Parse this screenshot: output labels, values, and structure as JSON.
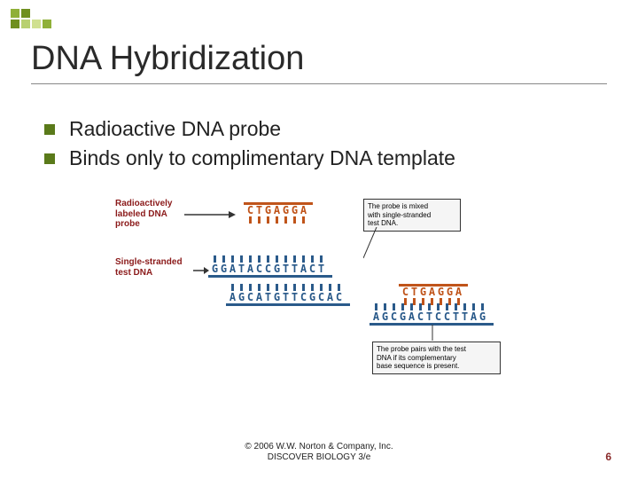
{
  "title": "DNA Hybridization",
  "bullets": [
    "Radioactive DNA probe",
    "Binds only to complimentary DNA template"
  ],
  "diagram": {
    "label_probe": "Radioactively\nlabeled DNA\nprobe",
    "label_test": "Single-stranded\ntest DNA",
    "callout1": "The probe is mixed\nwith single-stranded\ntest DNA.",
    "callout2": "The probe pairs with the test\nDNA if its complementary\nbase sequence is present.",
    "probe_seq": "CTGAGGA",
    "test_seq1": "GGATACCGTTACT",
    "test_seq2": "AGCATGTTCGCAC",
    "probe_seq2": "CTGAGGA",
    "test_seq3": "AGCGACTCCTTAG",
    "colors": {
      "orange": "#c0541a",
      "blue": "#2a5a8a",
      "label": "#8b1a1a"
    }
  },
  "footer": {
    "line1": "© 2006 W.W. Norton & Company, Inc.",
    "line2": "DISCOVER BIOLOGY 3/e"
  },
  "page_number": "6"
}
